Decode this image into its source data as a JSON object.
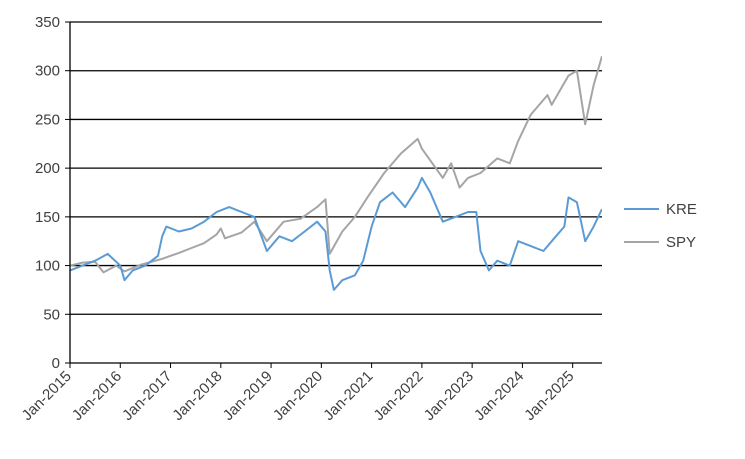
{
  "chart_data": {
    "type": "line",
    "title": "",
    "xlabel": "",
    "ylabel": "",
    "ylim": [
      0,
      350
    ],
    "yticks": [
      0,
      50,
      100,
      150,
      200,
      250,
      300,
      350
    ],
    "xlim": [
      "2015-01",
      "2025-08"
    ],
    "xticks": [
      "Jan-2015",
      "Jan-2016",
      "Jan-2017",
      "Jan-2018",
      "Jan-2019",
      "Jan-2020",
      "Jan-2021",
      "Jan-2022",
      "Jan-2023",
      "Jan-2024",
      "Jan-2025"
    ],
    "grid": "horizontal",
    "legend_position": "right",
    "series": [
      {
        "name": "KRE",
        "color": "#5B9BD5",
        "x": [
          "2015-01",
          "2015-04",
          "2015-07",
          "2015-10",
          "2016-01",
          "2016-02",
          "2016-04",
          "2016-07",
          "2016-10",
          "2016-11",
          "2016-12",
          "2017-03",
          "2017-06",
          "2017-09",
          "2017-12",
          "2018-03",
          "2018-06",
          "2018-09",
          "2018-12",
          "2019-03",
          "2019-06",
          "2019-09",
          "2019-12",
          "2020-02",
          "2020-03",
          "2020-04",
          "2020-06",
          "2020-09",
          "2020-11",
          "2021-01",
          "2021-03",
          "2021-06",
          "2021-09",
          "2021-12",
          "2022-01",
          "2022-03",
          "2022-06",
          "2022-09",
          "2022-12",
          "2023-02",
          "2023-03",
          "2023-05",
          "2023-07",
          "2023-10",
          "2023-12",
          "2024-03",
          "2024-06",
          "2024-09",
          "2024-11",
          "2024-12",
          "2025-02",
          "2025-04",
          "2025-06",
          "2025-08"
        ],
        "y": [
          95,
          100,
          105,
          112,
          100,
          85,
          95,
          100,
          110,
          130,
          140,
          135,
          138,
          145,
          155,
          160,
          155,
          150,
          115,
          130,
          125,
          135,
          145,
          135,
          95,
          75,
          85,
          90,
          105,
          140,
          165,
          175,
          160,
          180,
          190,
          175,
          145,
          150,
          155,
          155,
          115,
          95,
          105,
          100,
          125,
          120,
          115,
          130,
          140,
          170,
          165,
          125,
          140,
          158
        ]
      },
      {
        "name": "SPY",
        "color": "#A5A5A5",
        "x": [
          "2015-01",
          "2015-04",
          "2015-07",
          "2015-09",
          "2015-12",
          "2016-02",
          "2016-06",
          "2016-11",
          "2017-03",
          "2017-06",
          "2017-09",
          "2017-12",
          "2018-01",
          "2018-02",
          "2018-06",
          "2018-09",
          "2018-12",
          "2019-04",
          "2019-08",
          "2019-12",
          "2020-02",
          "2020-03",
          "2020-06",
          "2020-09",
          "2020-12",
          "2021-04",
          "2021-08",
          "2021-12",
          "2022-01",
          "2022-06",
          "2022-08",
          "2022-10",
          "2022-12",
          "2023-03",
          "2023-07",
          "2023-10",
          "2023-12",
          "2024-03",
          "2024-07",
          "2024-08",
          "2024-12",
          "2025-02",
          "2025-04",
          "2025-06",
          "2025-08"
        ],
        "y": [
          100,
          103,
          104,
          93,
          100,
          94,
          101,
          107,
          113,
          118,
          123,
          132,
          138,
          128,
          134,
          145,
          125,
          145,
          148,
          160,
          168,
          112,
          135,
          150,
          170,
          195,
          215,
          230,
          220,
          190,
          205,
          180,
          190,
          195,
          210,
          205,
          228,
          255,
          275,
          265,
          295,
          300,
          245,
          285,
          315
        ]
      }
    ]
  }
}
